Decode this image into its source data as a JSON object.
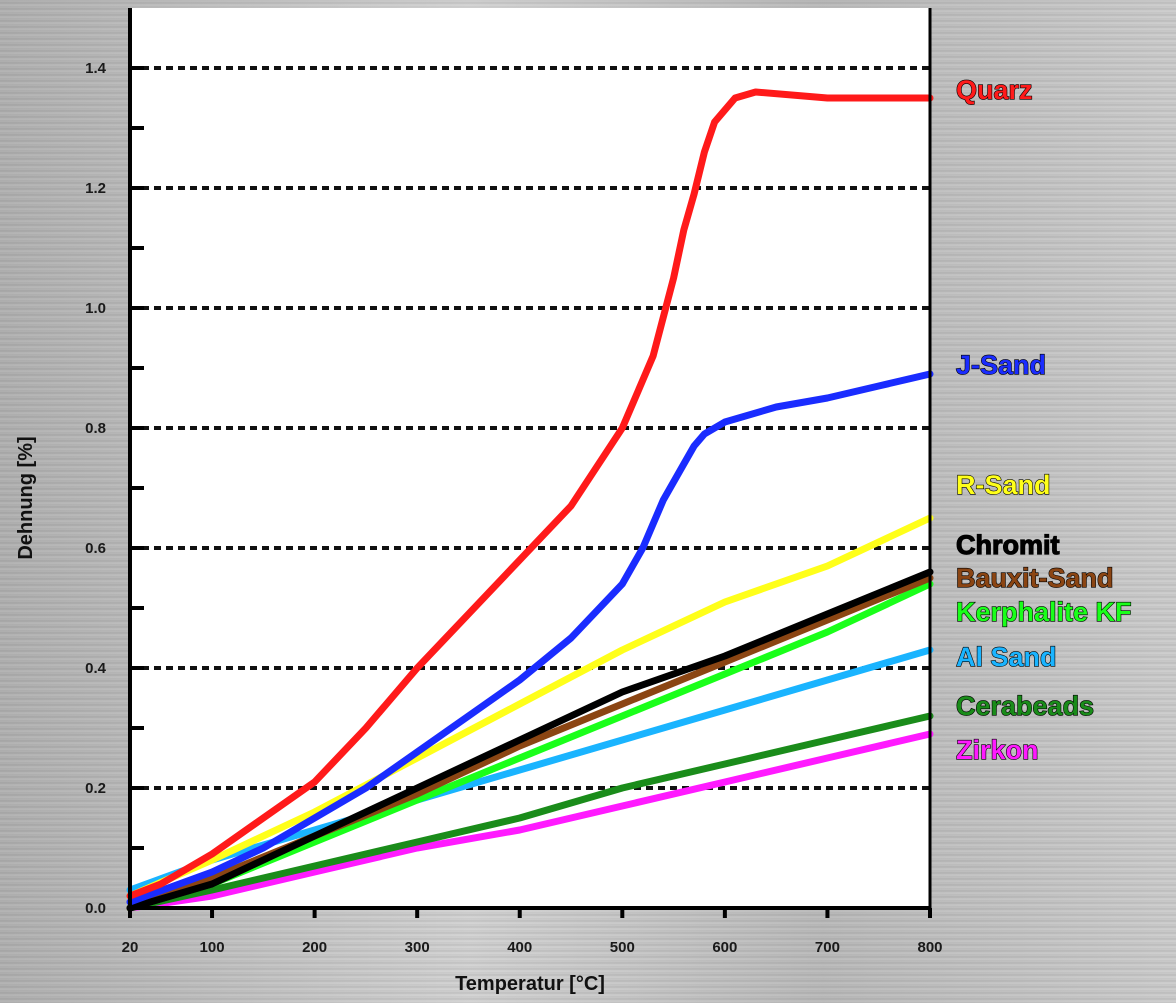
{
  "chart_data": {
    "type": "line",
    "xlabel": "Temperatur [°C]",
    "ylabel": "Dehnung [%]",
    "x_ticks": [
      20,
      100,
      200,
      300,
      400,
      500,
      600,
      700,
      800
    ],
    "y_ticks": [
      "0.0",
      "0.2",
      "0.4",
      "0.6",
      "0.8",
      "1.0",
      "1.2",
      "1.4"
    ],
    "xlim": [
      20,
      800
    ],
    "ylim": [
      0,
      1.4
    ],
    "grid": "dashed horizontal",
    "series": [
      {
        "name": "Quarz",
        "color": "#ff1a1a",
        "x": [
          20,
          50,
          100,
          150,
          200,
          250,
          300,
          350,
          400,
          450,
          500,
          530,
          550,
          560,
          570,
          580,
          590,
          610,
          630,
          700,
          800
        ],
        "y": [
          0.02,
          0.04,
          0.09,
          0.15,
          0.21,
          0.3,
          0.4,
          0.49,
          0.58,
          0.67,
          0.8,
          0.92,
          1.05,
          1.13,
          1.19,
          1.26,
          1.31,
          1.35,
          1.36,
          1.35,
          1.35
        ]
      },
      {
        "name": "J-Sand",
        "color": "#1a2cff",
        "x": [
          20,
          100,
          150,
          200,
          250,
          300,
          350,
          400,
          450,
          500,
          520,
          540,
          560,
          570,
          580,
          600,
          650,
          700,
          750,
          800
        ],
        "y": [
          0.01,
          0.06,
          0.1,
          0.15,
          0.2,
          0.26,
          0.32,
          0.38,
          0.45,
          0.54,
          0.6,
          0.68,
          0.74,
          0.77,
          0.79,
          0.81,
          0.835,
          0.85,
          0.87,
          0.89
        ]
      },
      {
        "name": "R-Sand",
        "color": "#ffff1a",
        "x": [
          20,
          100,
          200,
          300,
          400,
          500,
          600,
          700,
          800
        ],
        "y": [
          0.02,
          0.08,
          0.16,
          0.25,
          0.34,
          0.43,
          0.51,
          0.57,
          0.65
        ]
      },
      {
        "name": "Chromit",
        "color": "#000000",
        "x": [
          20,
          100,
          200,
          300,
          400,
          500,
          600,
          700,
          800
        ],
        "y": [
          0.0,
          0.04,
          0.12,
          0.2,
          0.28,
          0.36,
          0.42,
          0.49,
          0.56
        ]
      },
      {
        "name": "Bauxit-Sand",
        "color": "#8b4513",
        "x": [
          20,
          100,
          200,
          300,
          400,
          500,
          600,
          700,
          800
        ],
        "y": [
          0.0,
          0.05,
          0.12,
          0.19,
          0.27,
          0.34,
          0.41,
          0.48,
          0.55
        ]
      },
      {
        "name": "Kerphalite KF",
        "color": "#1aff1a",
        "x": [
          20,
          100,
          200,
          300,
          400,
          500,
          600,
          700,
          800
        ],
        "y": [
          0.0,
          0.04,
          0.11,
          0.18,
          0.25,
          0.32,
          0.39,
          0.46,
          0.54
        ]
      },
      {
        "name": "Al Sand",
        "color": "#1ab4ff",
        "x": [
          20,
          100,
          200,
          300,
          400,
          500,
          600,
          700,
          800
        ],
        "y": [
          0.03,
          0.08,
          0.13,
          0.18,
          0.23,
          0.28,
          0.33,
          0.38,
          0.43
        ]
      },
      {
        "name": "Cerabeads",
        "color": "#1a8c1a",
        "x": [
          20,
          100,
          200,
          300,
          400,
          500,
          600,
          700,
          800
        ],
        "y": [
          0.0,
          0.03,
          0.07,
          0.11,
          0.15,
          0.2,
          0.24,
          0.28,
          0.32
        ]
      },
      {
        "name": "Zirkon",
        "color": "#ff1aff",
        "x": [
          20,
          100,
          200,
          300,
          400,
          500,
          600,
          700,
          800
        ],
        "y": [
          0.0,
          0.02,
          0.06,
          0.1,
          0.13,
          0.17,
          0.21,
          0.25,
          0.29
        ]
      }
    ]
  }
}
